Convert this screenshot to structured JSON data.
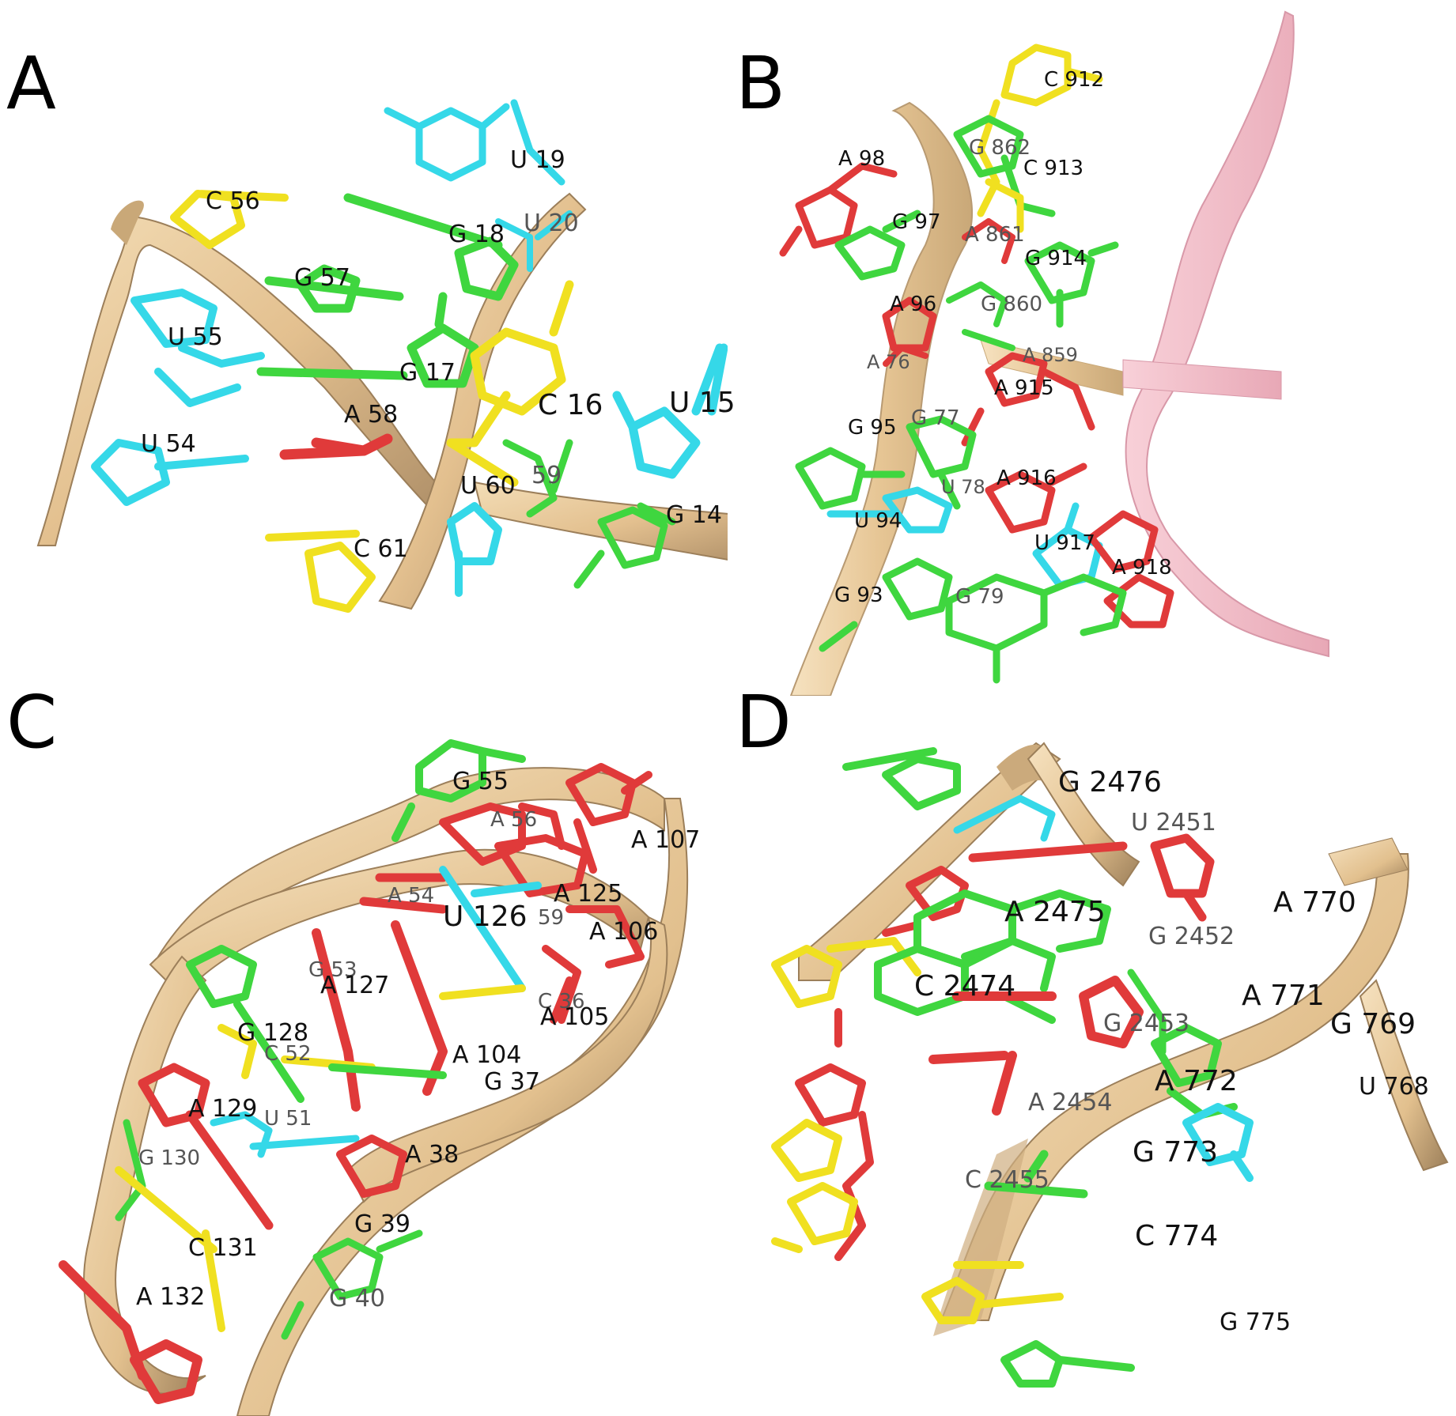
{
  "colors": {
    "ribbon": "#E8C99A",
    "ribbon_dark": "#B89A72",
    "ribbon_pink": "#F2B8C4",
    "adenine": "#E03A3A",
    "guanine": "#3FD63F",
    "cytosine": "#F0E020",
    "uracil": "#35D8E8",
    "background": "#FFFFFF"
  },
  "panels": [
    {
      "letter": "A",
      "labels": [
        "U 19",
        "C 56",
        "U 20",
        "G 18",
        "G 57",
        "U 55",
        "G 17",
        "C 16",
        "U 15",
        "A 58",
        "U 54",
        "59",
        "U 60",
        "G 14",
        "C 61"
      ]
    },
    {
      "letter": "B",
      "labels": [
        "C 912",
        "A 98",
        "G 862",
        "C 913",
        "G 97",
        "A 861",
        "G 914",
        "G 860",
        "A 96",
        "A 76",
        "A 859",
        "A 915",
        "G 95",
        "G 77",
        "A 916",
        "U 78",
        "U 94",
        "U 917",
        "A 918",
        "G 93",
        "G 79"
      ]
    },
    {
      "letter": "C",
      "labels": [
        "G 55",
        "A 56",
        "A 107",
        "A 125",
        "A 54",
        "U 126",
        "59",
        "A 106",
        "G 53",
        "A 127",
        "C 36",
        "A 105",
        "G 128",
        "C 52",
        "A 104",
        "G 37",
        "A 129",
        "U 51",
        "G 130",
        "A 38",
        "G 39",
        "C 131",
        "A 132",
        "G 40"
      ]
    },
    {
      "letter": "D",
      "labels": [
        "G 2476",
        "U 2451",
        "A 2475",
        "A 770",
        "G 2452",
        "C 2474",
        "A 771",
        "G 2453",
        "G 769",
        "A 772",
        "A 2454",
        "U 768",
        "G 773",
        "C 2455",
        "C 774",
        "G 775"
      ]
    }
  ]
}
